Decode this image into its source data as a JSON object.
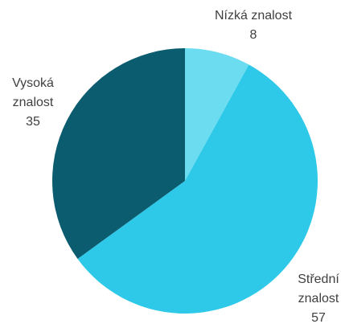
{
  "chart_data": {
    "type": "pie",
    "categories": [
      "Nízká znalost",
      "Střední znalost",
      "Vysoká znalost"
    ],
    "values": [
      8,
      57,
      35
    ],
    "colors": [
      "#6cdcf0",
      "#2ec9e8",
      "#0b5c6e"
    ]
  }
}
